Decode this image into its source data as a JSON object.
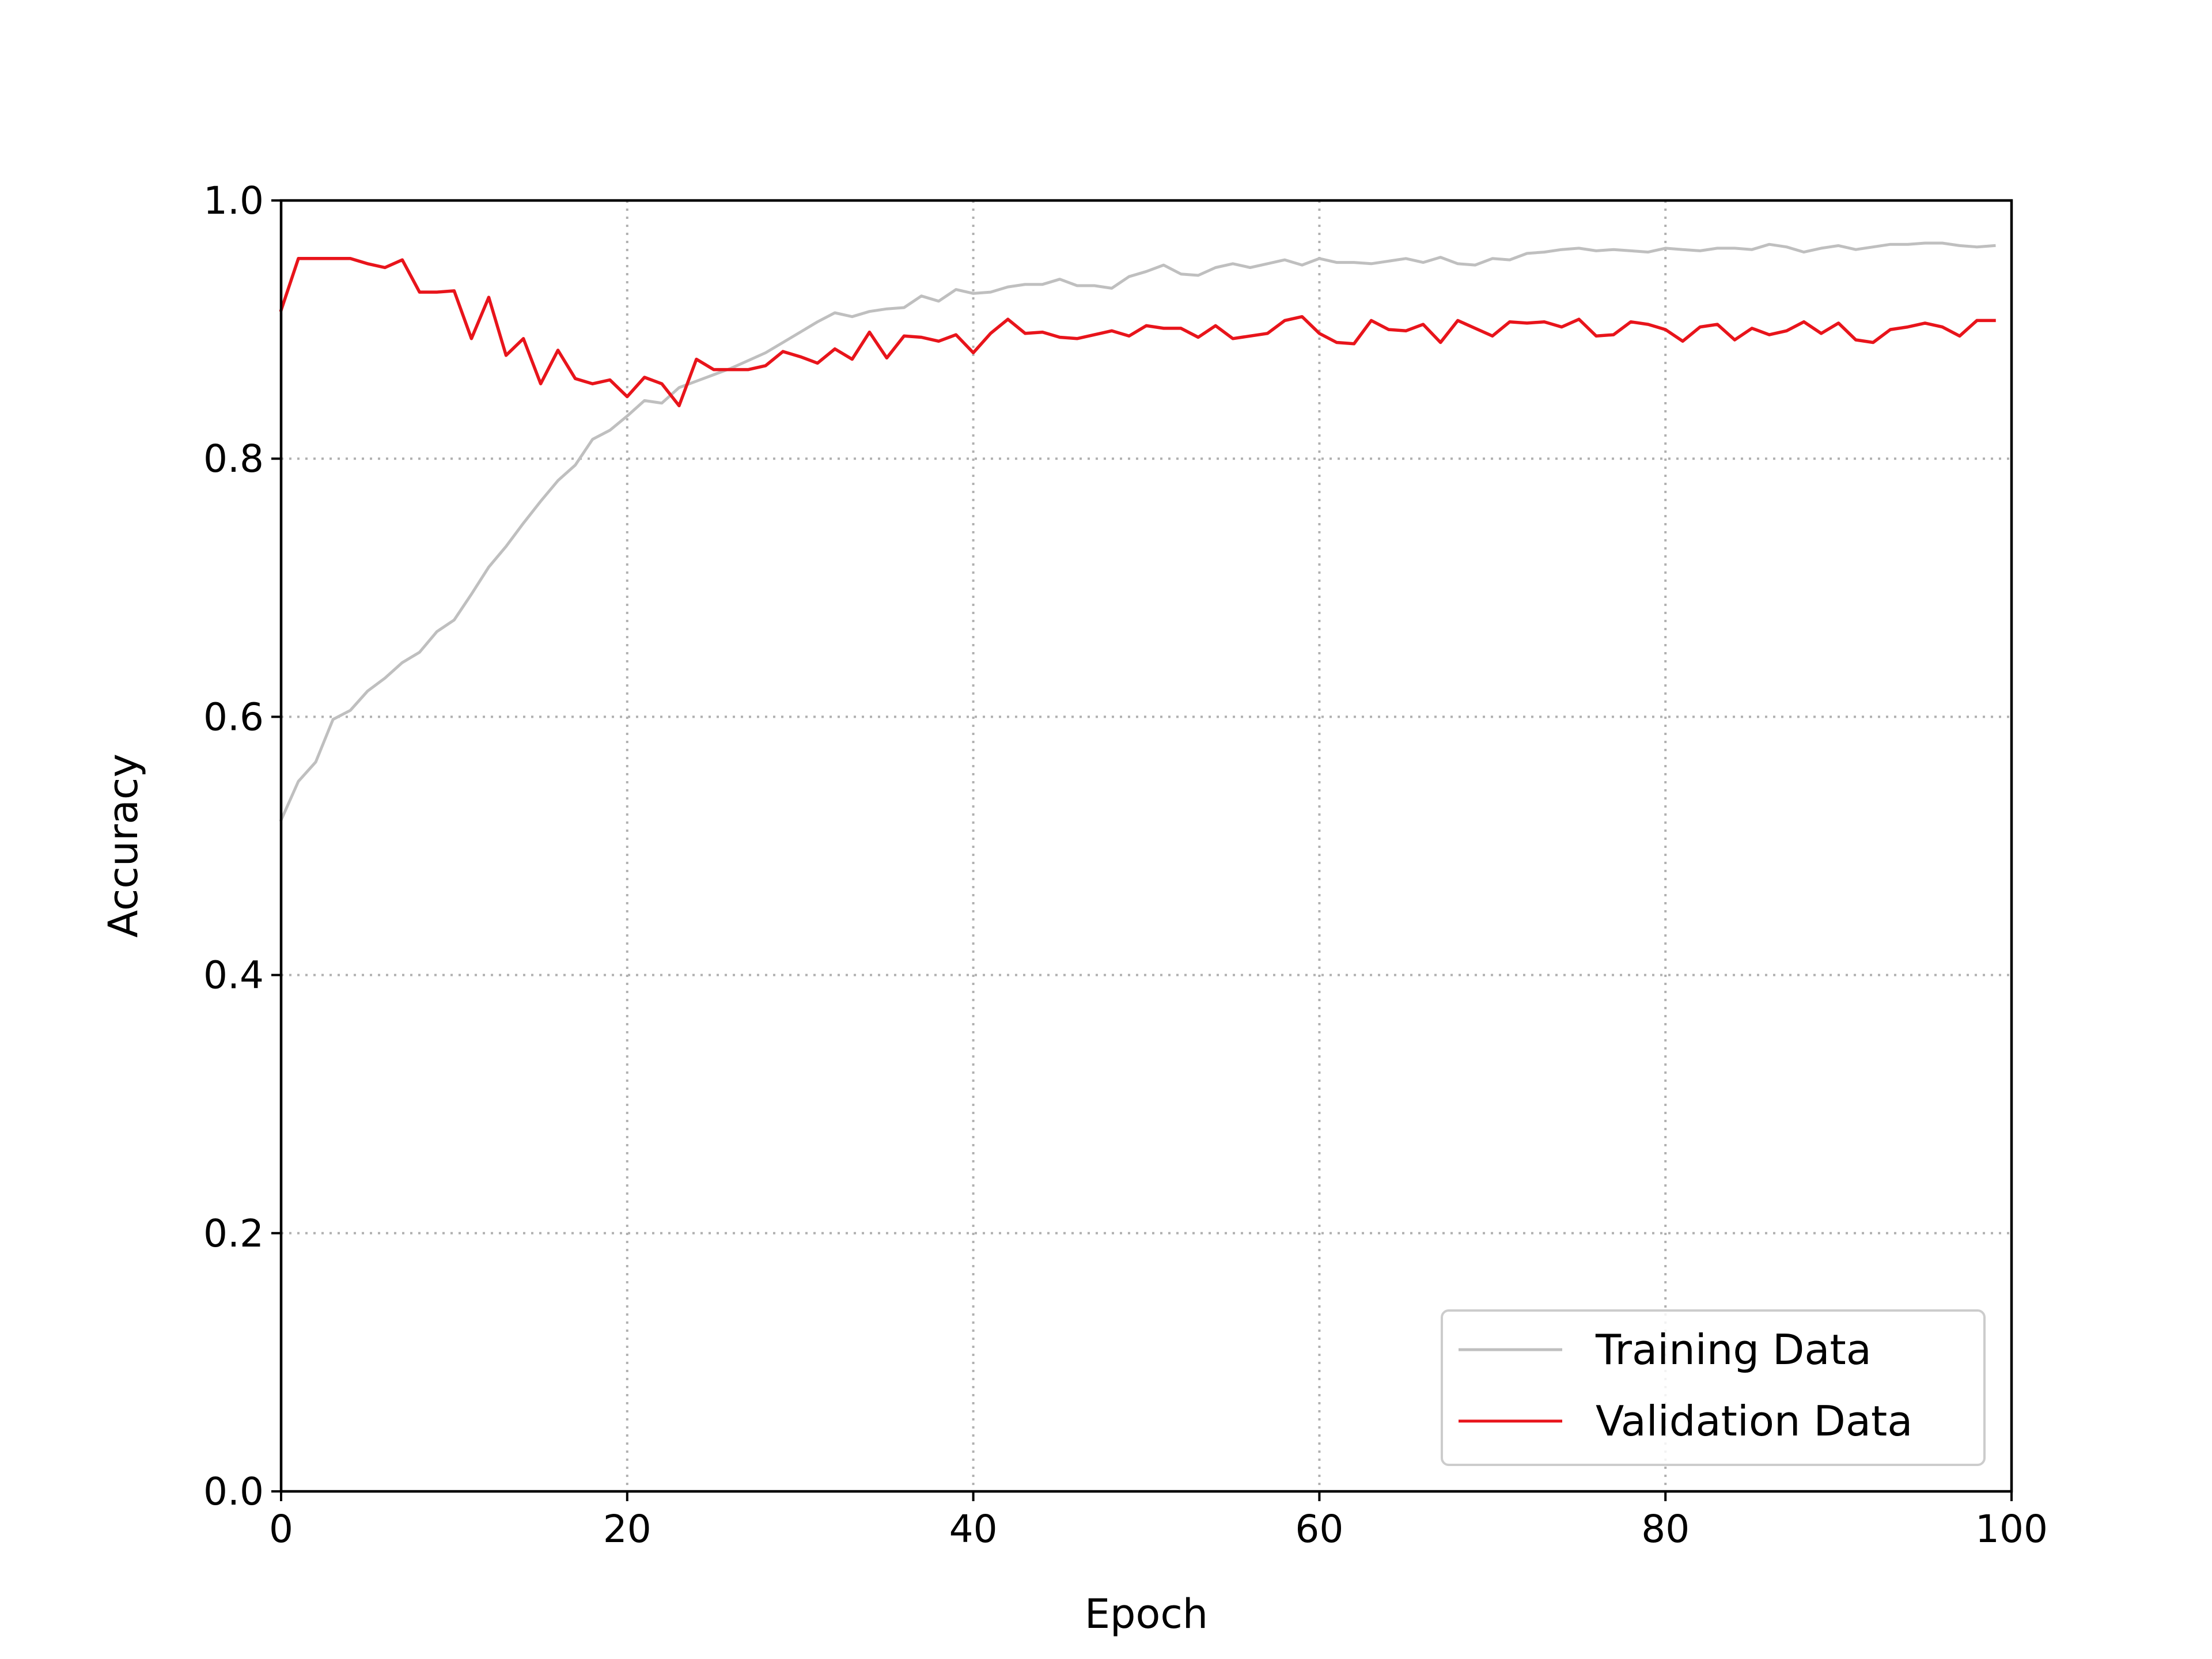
{
  "chart_data": {
    "type": "line",
    "xlabel": "Epoch",
    "ylabel": "Accuracy",
    "xlim": [
      0,
      100
    ],
    "ylim": [
      0.0,
      1.0
    ],
    "xticks": [
      "0",
      "20",
      "40",
      "60",
      "80",
      "100"
    ],
    "yticks": [
      "0.0",
      "0.2",
      "0.4",
      "0.6",
      "0.8",
      "1.0"
    ],
    "grid": true,
    "legend_position": "lower-right",
    "x": [
      0,
      1,
      2,
      3,
      4,
      5,
      6,
      7,
      8,
      9,
      10,
      11,
      12,
      13,
      14,
      15,
      16,
      17,
      18,
      19,
      20,
      21,
      22,
      23,
      24,
      25,
      26,
      27,
      28,
      29,
      30,
      31,
      32,
      33,
      34,
      35,
      36,
      37,
      38,
      39,
      40,
      41,
      42,
      43,
      44,
      45,
      46,
      47,
      48,
      49,
      50,
      51,
      52,
      53,
      54,
      55,
      56,
      57,
      58,
      59,
      60,
      61,
      62,
      63,
      64,
      65,
      66,
      67,
      68,
      69,
      70,
      71,
      72,
      73,
      74,
      75,
      76,
      77,
      78,
      79,
      80,
      81,
      82,
      83,
      84,
      85,
      86,
      87,
      88,
      89,
      90,
      91,
      92,
      93,
      94,
      95,
      96,
      97,
      98,
      99
    ],
    "series": [
      {
        "name": "Training Data",
        "color": "#bfbfbf",
        "values": [
          0.52,
          0.55,
          0.565,
          0.598,
          0.605,
          0.62,
          0.63,
          0.642,
          0.65,
          0.666,
          0.675,
          0.695,
          0.716,
          0.732,
          0.75,
          0.767,
          0.783,
          0.795,
          0.815,
          0.822,
          0.833,
          0.845,
          0.843,
          0.855,
          0.86,
          0.865,
          0.87,
          0.876,
          0.882,
          0.89,
          0.898,
          0.906,
          0.913,
          0.91,
          0.914,
          0.916,
          0.917,
          0.926,
          0.922,
          0.931,
          0.928,
          0.929,
          0.933,
          0.935,
          0.935,
          0.939,
          0.934,
          0.934,
          0.932,
          0.941,
          0.945,
          0.95,
          0.943,
          0.942,
          0.948,
          0.951,
          0.948,
          0.951,
          0.954,
          0.95,
          0.955,
          0.952,
          0.952,
          0.951,
          0.953,
          0.955,
          0.952,
          0.956,
          0.951,
          0.95,
          0.955,
          0.954,
          0.959,
          0.96,
          0.962,
          0.963,
          0.961,
          0.962,
          0.961,
          0.96,
          0.963,
          0.962,
          0.961,
          0.963,
          0.963,
          0.962,
          0.966,
          0.964,
          0.96,
          0.963,
          0.965,
          0.962,
          0.964,
          0.966,
          0.966,
          0.967,
          0.967,
          0.965,
          0.964,
          0.965
        ]
      },
      {
        "name": "Validation Data",
        "color": "#e8141b",
        "values": [
          0.915,
          0.955,
          0.955,
          0.955,
          0.955,
          0.951,
          0.948,
          0.954,
          0.929,
          0.929,
          0.93,
          0.893,
          0.925,
          0.88,
          0.893,
          0.858,
          0.884,
          0.862,
          0.858,
          0.861,
          0.848,
          0.863,
          0.858,
          0.841,
          0.877,
          0.869,
          0.869,
          0.869,
          0.872,
          0.883,
          0.879,
          0.874,
          0.885,
          0.877,
          0.898,
          0.878,
          0.895,
          0.894,
          0.891,
          0.896,
          0.882,
          0.897,
          0.908,
          0.897,
          0.898,
          0.894,
          0.893,
          0.896,
          0.899,
          0.895,
          0.903,
          0.901,
          0.901,
          0.894,
          0.903,
          0.893,
          0.895,
          0.897,
          0.907,
          0.91,
          0.897,
          0.89,
          0.889,
          0.907,
          0.9,
          0.899,
          0.904,
          0.89,
          0.907,
          0.901,
          0.895,
          0.906,
          0.905,
          0.906,
          0.902,
          0.908,
          0.895,
          0.896,
          0.906,
          0.904,
          0.9,
          0.891,
          0.902,
          0.904,
          0.892,
          0.901,
          0.896,
          0.899,
          0.906,
          0.897,
          0.905,
          0.892,
          0.89,
          0.9,
          0.902,
          0.905,
          0.902,
          0.895,
          0.907,
          0.907
        ]
      }
    ]
  }
}
